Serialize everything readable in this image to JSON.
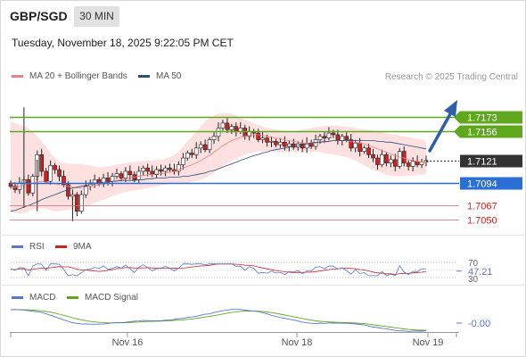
{
  "header": {
    "symbol": "GBP/SGD",
    "interval": "30 MIN",
    "datetime": "Tuesday, November 18, 2025 9:22:05 PM CET"
  },
  "legend": {
    "ma20_label": "MA 20 + Bollinger Bands",
    "ma50_label": "MA 50",
    "credit": "Research © 2025 Trading Central",
    "rsi_label": "RSI",
    "rsi_ma_label": "9MA",
    "macd_label": "MACD",
    "macd_signal_label": "MACD Signal"
  },
  "colors": {
    "ma20": "#f08080",
    "ma50": "#2c4f7c",
    "bollinger_fill": "#fde0e0",
    "candle_up": "#ffffff",
    "candle_down": "#cc2222",
    "resistance": "#5fa81e",
    "pivot": "#2c6fd4",
    "support": "#e06666",
    "current": "#333333",
    "rsi": "#5577cc",
    "rsi_ma": "#cc2222",
    "macd": "#5577cc",
    "macd_signal": "#5fa81e",
    "arrow": "#2c5fa8"
  },
  "chart_data": [
    {
      "type": "candlestick",
      "title": "GBP/SGD 30 MIN",
      "ylim": [
        1.7042,
        1.7185
      ],
      "x_ticks": [
        "Nov 16",
        "Nov 18",
        "Nov 19"
      ],
      "series": [
        {
          "name": "MA 20 + Bollinger Bands"
        },
        {
          "name": "MA 50"
        }
      ],
      "levels": [
        {
          "label": "1.7173",
          "value": 1.7173,
          "role": "resistance"
        },
        {
          "label": "1.7156",
          "value": 1.7156,
          "role": "resistance"
        },
        {
          "label": "1.7121",
          "value": 1.7121,
          "role": "current"
        },
        {
          "label": "1.7094",
          "value": 1.7094,
          "role": "pivot"
        },
        {
          "label": "1.7067",
          "value": 1.7067,
          "role": "support"
        },
        {
          "label": "1.7050",
          "value": 1.705,
          "role": "support"
        }
      ],
      "close": [
        1.709,
        1.7086,
        1.7094,
        1.7098,
        1.7082,
        1.7102,
        1.7128,
        1.7108,
        1.7096,
        1.7115,
        1.711,
        1.7102,
        1.7092,
        1.7078,
        1.708,
        1.706,
        1.708,
        1.709,
        1.7094,
        1.7098,
        1.7093,
        1.71,
        1.7096,
        1.7102,
        1.7105,
        1.71,
        1.7108,
        1.7104,
        1.7098,
        1.7108,
        1.7112,
        1.7108,
        1.7104,
        1.711,
        1.7108,
        1.7112,
        1.711,
        1.7108,
        1.7116,
        1.7124,
        1.713,
        1.7128,
        1.7136,
        1.714,
        1.7134,
        1.7146,
        1.715,
        1.716,
        1.7166,
        1.7158,
        1.7162,
        1.7156,
        1.716,
        1.715,
        1.7156,
        1.7154,
        1.7146,
        1.7148,
        1.7143,
        1.7144,
        1.714,
        1.7143,
        1.7138,
        1.7141,
        1.7137,
        1.7141,
        1.7136,
        1.7142,
        1.7138,
        1.7146,
        1.715,
        1.7148,
        1.7154,
        1.7152,
        1.7145,
        1.715,
        1.7146,
        1.7136,
        1.7142,
        1.7132,
        1.7136,
        1.7128,
        1.7124,
        1.7116,
        1.7128,
        1.7118,
        1.7122,
        1.7114,
        1.7132,
        1.7118,
        1.7114,
        1.712,
        1.7116,
        1.7119,
        1.7121
      ],
      "ma20": [
        1.7088,
        1.7089,
        1.709,
        1.7092,
        1.7093,
        1.7094,
        1.7095,
        1.7096,
        1.7095,
        1.7094,
        1.7093,
        1.7092,
        1.7091,
        1.709,
        1.7089,
        1.7088,
        1.7088,
        1.7089,
        1.709,
        1.7091,
        1.7092,
        1.7093,
        1.7094,
        1.7096,
        1.7097,
        1.7098,
        1.7099,
        1.71,
        1.7101,
        1.7102,
        1.7103,
        1.7104,
        1.7104,
        1.7105,
        1.7105,
        1.7106,
        1.7107,
        1.7108,
        1.711,
        1.7112,
        1.7114,
        1.7116,
        1.7118,
        1.7121,
        1.7124,
        1.7127,
        1.7131,
        1.7135,
        1.7139,
        1.7142,
        1.7145,
        1.7147,
        1.7149,
        1.715,
        1.7151,
        1.7152,
        1.7152,
        1.7151,
        1.715,
        1.7149,
        1.7148,
        1.7147,
        1.7146,
        1.7145,
        1.7144,
        1.7143,
        1.7142,
        1.7142,
        1.7142,
        1.7142,
        1.7143,
        1.7143,
        1.7144,
        1.7145,
        1.7145,
        1.7145,
        1.7145,
        1.7144,
        1.7143,
        1.7142,
        1.7141,
        1.7139,
        1.7137,
        1.7135,
        1.7133,
        1.7131,
        1.7129,
        1.7127,
        1.7125,
        1.7124,
        1.7122,
        1.7121,
        1.712,
        1.7119,
        1.7119
      ],
      "bb_upper": [
        1.7168,
        1.7166,
        1.7164,
        1.7162,
        1.716,
        1.7156,
        1.715,
        1.7144,
        1.7138,
        1.713,
        1.7124,
        1.712,
        1.7118,
        1.7117,
        1.7117,
        1.7117,
        1.7117,
        1.7116,
        1.7115,
        1.7114,
        1.7113,
        1.7113,
        1.7114,
        1.7115,
        1.7116,
        1.7117,
        1.7118,
        1.7119,
        1.7119,
        1.712,
        1.712,
        1.7121,
        1.7121,
        1.7122,
        1.7122,
        1.7123,
        1.7125,
        1.7128,
        1.7132,
        1.7138,
        1.7144,
        1.715,
        1.7156,
        1.7162,
        1.7168,
        1.7172,
        1.7175,
        1.7177,
        1.7178,
        1.7178,
        1.7177,
        1.7175,
        1.7173,
        1.717,
        1.7168,
        1.7166,
        1.7164,
        1.7162,
        1.716,
        1.7159,
        1.7158,
        1.7157,
        1.7156,
        1.7156,
        1.7156,
        1.7157,
        1.7158,
        1.7159,
        1.716,
        1.7161,
        1.7162,
        1.7163,
        1.7163,
        1.7163,
        1.7163,
        1.7162,
        1.7162,
        1.7161,
        1.716,
        1.7159,
        1.7158,
        1.7158,
        1.7157,
        1.7156,
        1.7155,
        1.7154,
        1.7153,
        1.7152,
        1.7151,
        1.715,
        1.7149,
        1.7148,
        1.7147,
        1.7146,
        1.7145
      ],
      "bb_lower": [
        1.706,
        1.7058,
        1.7057,
        1.7058,
        1.706,
        1.7062,
        1.7063,
        1.7064,
        1.7063,
        1.7061,
        1.706,
        1.706,
        1.7061,
        1.7062,
        1.7063,
        1.7064,
        1.7065,
        1.7066,
        1.7068,
        1.707,
        1.7072,
        1.7074,
        1.7076,
        1.7078,
        1.708,
        1.7082,
        1.7083,
        1.7084,
        1.7085,
        1.7086,
        1.7087,
        1.7088,
        1.7089,
        1.709,
        1.7091,
        1.7092,
        1.7093,
        1.7094,
        1.7094,
        1.7094,
        1.7094,
        1.7095,
        1.7096,
        1.7098,
        1.71,
        1.7103,
        1.7106,
        1.711,
        1.7114,
        1.7118,
        1.7121,
        1.7124,
        1.7126,
        1.7128,
        1.713,
        1.7131,
        1.7132,
        1.7132,
        1.7132,
        1.7132,
        1.7131,
        1.7131,
        1.7131,
        1.7131,
        1.7131,
        1.7131,
        1.7131,
        1.7131,
        1.7131,
        1.7131,
        1.7131,
        1.713,
        1.7129,
        1.7128,
        1.7127,
        1.7126,
        1.7125,
        1.7123,
        1.7121,
        1.7118,
        1.7115,
        1.7112,
        1.711,
        1.7108,
        1.7106,
        1.7104,
        1.7103,
        1.7102,
        1.7102,
        1.7102,
        1.7103,
        1.7103,
        1.7104,
        1.7104,
        1.7105
      ],
      "ma50": [
        1.706,
        1.7061,
        1.7063,
        1.7065,
        1.7067,
        1.7069,
        1.7071,
        1.7074,
        1.7076,
        1.7078,
        1.708,
        1.7082,
        1.7084,
        1.7086,
        1.7088,
        1.7089,
        1.709,
        1.7091,
        1.7092,
        1.7093,
        1.7094,
        1.7095,
        1.7095,
        1.7096,
        1.7096,
        1.7097,
        1.7097,
        1.7097,
        1.7097,
        1.7098,
        1.7098,
        1.7099,
        1.7099,
        1.71,
        1.71,
        1.71,
        1.7101,
        1.7101,
        1.7101,
        1.7102,
        1.7102,
        1.7103,
        1.7104,
        1.7105,
        1.7106,
        1.7108,
        1.7109,
        1.7111,
        1.7113,
        1.7115,
        1.7117,
        1.7119,
        1.7121,
        1.7123,
        1.7125,
        1.7127,
        1.7128,
        1.713,
        1.7131,
        1.7133,
        1.7134,
        1.7135,
        1.7136,
        1.7137,
        1.7138,
        1.7139,
        1.714,
        1.7141,
        1.7142,
        1.7143,
        1.7143,
        1.7144,
        1.7144,
        1.7145,
        1.7145,
        1.7145,
        1.7145,
        1.7145,
        1.7145,
        1.7145,
        1.7145,
        1.7145,
        1.7145,
        1.7144,
        1.7144,
        1.7143,
        1.7143,
        1.7142,
        1.7141,
        1.714,
        1.7139,
        1.7138,
        1.7137,
        1.7136,
        1.7135
      ]
    },
    {
      "type": "line",
      "title": "RSI",
      "ylim": [
        20,
        80
      ],
      "y_ticks": [
        "70",
        "30"
      ],
      "last_value_label": "47.21",
      "series": [
        {
          "name": "RSI"
        },
        {
          "name": "9MA"
        }
      ]
    },
    {
      "type": "line",
      "title": "MACD",
      "last_value_label": "-0.00",
      "series": [
        {
          "name": "MACD"
        },
        {
          "name": "MACD Signal"
        }
      ]
    }
  ]
}
